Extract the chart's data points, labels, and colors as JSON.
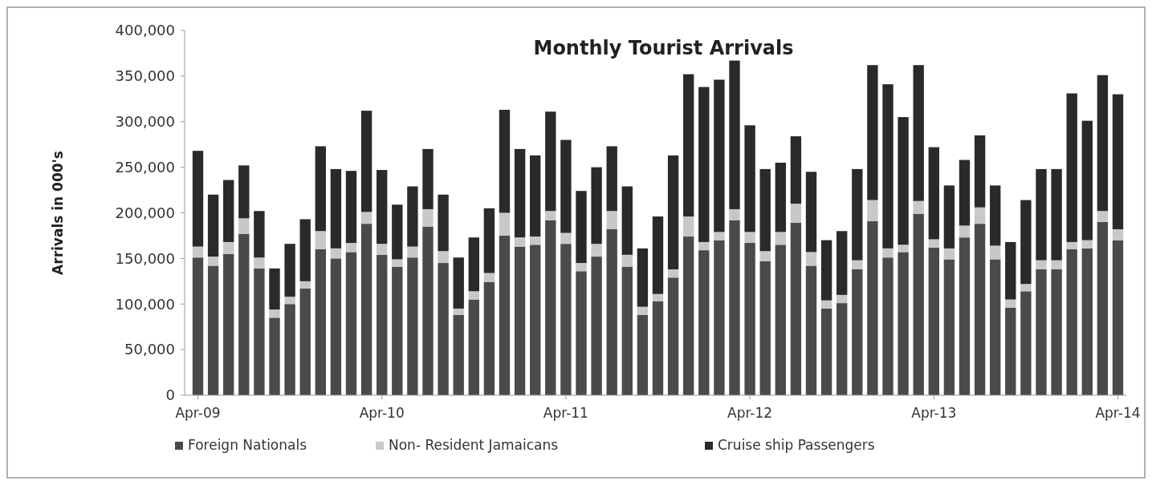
{
  "chart_data": {
    "type": "bar",
    "title": "Monthly Tourist Arrivals",
    "ylabel": "Arrivals in 000's",
    "stacked": true,
    "legend": "bottom",
    "grid": false,
    "categories": [
      "Apr-09",
      null,
      null,
      null,
      null,
      null,
      null,
      null,
      null,
      null,
      null,
      null,
      "Apr-10",
      null,
      null,
      null,
      null,
      null,
      null,
      null,
      null,
      null,
      null,
      null,
      "Apr-11",
      null,
      null,
      null,
      null,
      null,
      null,
      null,
      null,
      null,
      null,
      null,
      "Apr-12",
      null,
      null,
      null,
      null,
      null,
      null,
      null,
      null,
      null,
      null,
      null,
      "Apr-13",
      null,
      null,
      null,
      null,
      null,
      null,
      null,
      null,
      null,
      null,
      null,
      "Apr-14"
    ],
    "ylim": [
      0,
      400000
    ],
    "yticks": [
      {
        "value": 0,
        "label": "0"
      },
      {
        "value": 50000,
        "label": "50,000"
      },
      {
        "value": 100000,
        "label": "100,000"
      },
      {
        "value": 150000,
        "label": "150,000"
      },
      {
        "value": 200000,
        "label": "200,000"
      },
      {
        "value": 250000,
        "label": "250,000"
      },
      {
        "value": 300000,
        "label": "300,000"
      },
      {
        "value": 350000,
        "label": "350,000"
      },
      {
        "value": 400000,
        "label": "400,000"
      }
    ],
    "series": [
      {
        "name": "Foreign Nationals",
        "color": "#4a4a4a",
        "values": [
          151000,
          142000,
          155000,
          177000,
          139000,
          85000,
          100000,
          117000,
          160000,
          150000,
          157000,
          188000,
          154000,
          141000,
          151000,
          185000,
          145000,
          88000,
          105000,
          124000,
          175000,
          163000,
          165000,
          192000,
          166000,
          136000,
          152000,
          182000,
          141000,
          88000,
          103000,
          129000,
          174000,
          159000,
          170000,
          192000,
          167000,
          147000,
          165000,
          189000,
          142000,
          95000,
          101000,
          138000,
          191000,
          151000,
          157000,
          199000,
          162000,
          149000,
          173000,
          188000,
          149000,
          96000,
          114000,
          138000,
          138000,
          160000,
          161000,
          190000,
          170000
        ]
      },
      {
        "name": "Non- Resident Jamaicans",
        "color": "#c8c8c8",
        "values": [
          12000,
          10000,
          13000,
          17000,
          12000,
          9000,
          8000,
          8000,
          20000,
          11000,
          10000,
          13000,
          12000,
          8000,
          12000,
          19000,
          13000,
          7000,
          9000,
          10000,
          25000,
          10000,
          9000,
          10000,
          12000,
          9000,
          14000,
          20000,
          13000,
          9000,
          8000,
          9000,
          22000,
          9000,
          9000,
          12000,
          12000,
          11000,
          14000,
          21000,
          15000,
          9000,
          9000,
          10000,
          23000,
          10000,
          8000,
          14000,
          9000,
          12000,
          13000,
          18000,
          15000,
          9000,
          8000,
          10000,
          10000,
          8000,
          9000,
          12000,
          12000
        ]
      },
      {
        "name": "Cruise ship Passengers",
        "color": "#2a2a2a",
        "values": [
          105000,
          68000,
          68000,
          58000,
          51000,
          45000,
          58000,
          68000,
          93000,
          87000,
          79000,
          111000,
          81000,
          60000,
          66000,
          66000,
          62000,
          56000,
          59000,
          71000,
          113000,
          97000,
          89000,
          109000,
          102000,
          79000,
          84000,
          71000,
          75000,
          64000,
          85000,
          125000,
          156000,
          170000,
          167000,
          163000,
          117000,
          90000,
          76000,
          74000,
          88000,
          66000,
          70000,
          100000,
          148000,
          180000,
          140000,
          149000,
          101000,
          69000,
          72000,
          79000,
          66000,
          63000,
          92000,
          100000,
          100000,
          163000,
          131000,
          149000,
          148000
        ]
      }
    ]
  }
}
